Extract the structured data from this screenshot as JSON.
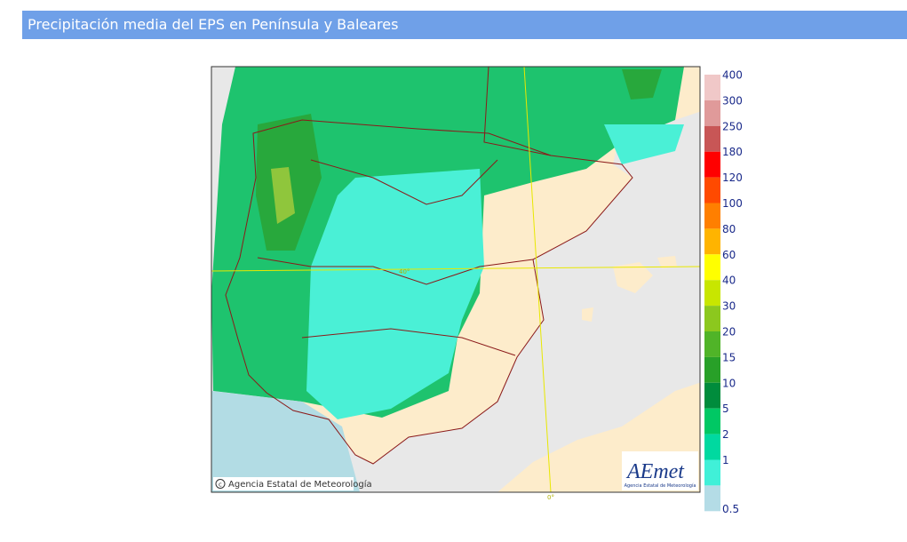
{
  "header": {
    "title": "Precipitación media del EPS en Península y Baleares"
  },
  "map": {
    "copyright": "Agencia Estatal de Meteorología",
    "logo": "AEmet",
    "logo_subtitle": "Agencia Estatal de Meteorología",
    "lat_label": "40°",
    "lon_label": "0°"
  },
  "legend": {
    "levels": [
      400,
      300,
      250,
      180,
      120,
      100,
      80,
      60,
      40,
      30,
      20,
      15,
      10,
      5,
      2,
      1,
      0.5
    ],
    "colors": [
      "#f0c8c8",
      "#e09a9a",
      "#c85656",
      "#ff0000",
      "#ff4a00",
      "#ff7f00",
      "#ffb400",
      "#ffff00",
      "#c8e600",
      "#8cc81e",
      "#50b428",
      "#28a028",
      "#008c3c",
      "#00c864",
      "#00d9a0",
      "#40f0d8",
      "#b4dce6"
    ]
  }
}
